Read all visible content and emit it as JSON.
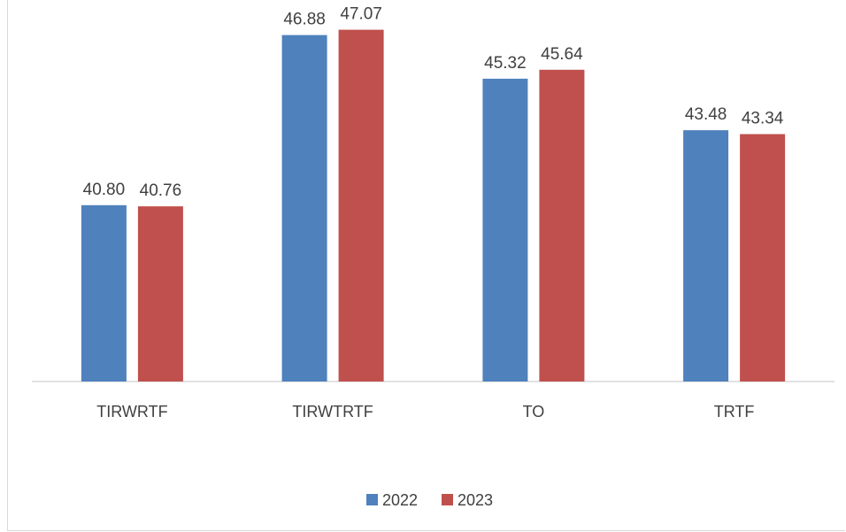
{
  "chart_data": {
    "type": "bar",
    "title": "",
    "xlabel": "",
    "ylabel": "",
    "categories": [
      "TIRWRTF",
      "TIRWTRTF",
      "TO",
      "TRTF"
    ],
    "series": [
      {
        "name": "2022",
        "color": "#4f81bd",
        "values": [
          40.8,
          46.88,
          45.32,
          43.48
        ]
      },
      {
        "name": "2023",
        "color": "#c0504d",
        "values": [
          40.76,
          47.07,
          45.64,
          43.34
        ]
      }
    ],
    "ylim": [
      34.5,
      47.5
    ],
    "grid": false,
    "legend": "bottom"
  }
}
